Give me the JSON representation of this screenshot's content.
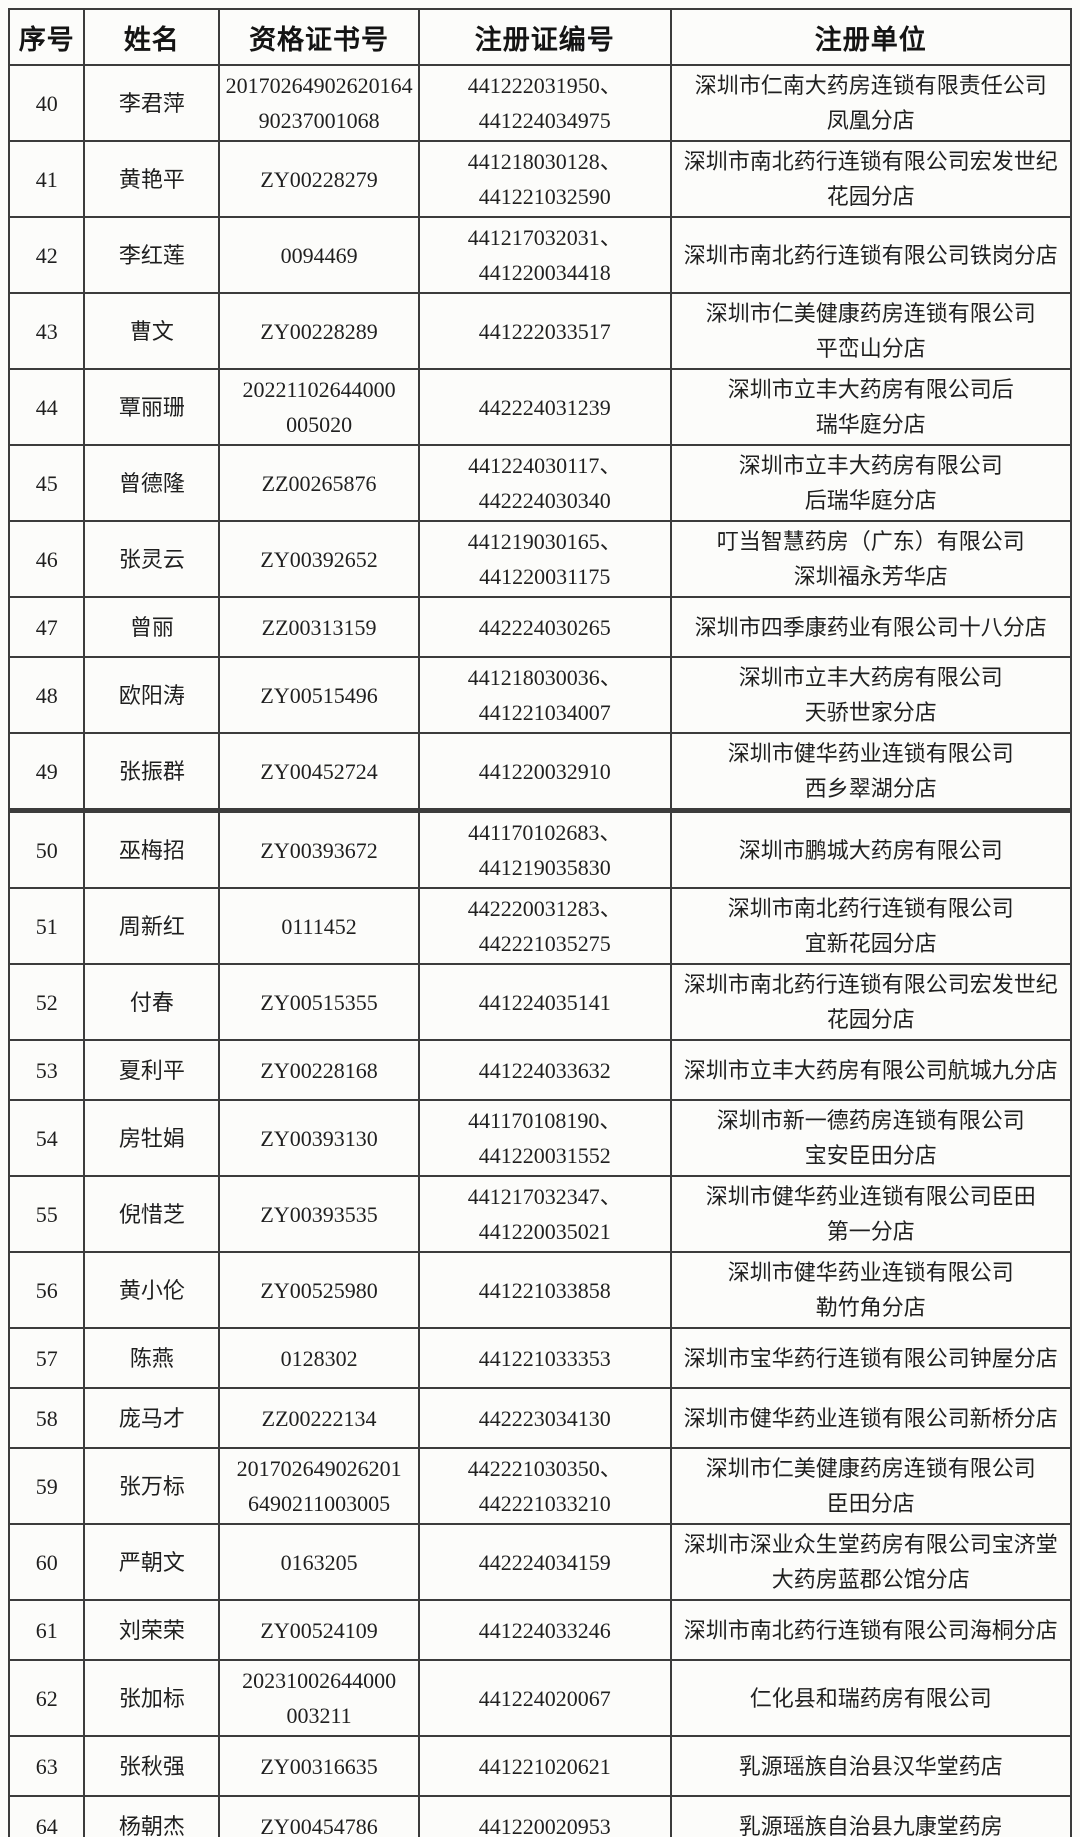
{
  "table": {
    "headers": [
      "序号",
      "姓名",
      "资格证书号",
      "注册证编号",
      "注册单位"
    ],
    "thick_divider_after_no": "49",
    "rows": [
      {
        "no": "40",
        "name": "李君萍",
        "cert": [
          "20170264902620164",
          "90237001068"
        ],
        "reg": [
          "441222031950、",
          "441224034975"
        ],
        "unit": [
          "深圳市仁南大药房连锁有限责任公司",
          "凤凰分店"
        ]
      },
      {
        "no": "41",
        "name": "黄艳平",
        "cert": [
          "ZY00228279"
        ],
        "reg": [
          "441218030128、",
          "441221032590"
        ],
        "unit": [
          "深圳市南北药行连锁有限公司宏发世纪",
          "花园分店"
        ]
      },
      {
        "no": "42",
        "name": "李红莲",
        "cert": [
          "0094469"
        ],
        "reg": [
          "441217032031、",
          "441220034418"
        ],
        "unit": [
          "深圳市南北药行连锁有限公司铁岗分店"
        ]
      },
      {
        "no": "43",
        "name": "曹文",
        "cert": [
          "ZY00228289"
        ],
        "reg": [
          "441222033517"
        ],
        "unit": [
          "深圳市仁美健康药房连锁有限公司",
          "平峦山分店"
        ]
      },
      {
        "no": "44",
        "name": "覃丽珊",
        "cert": [
          "20221102644000",
          "005020"
        ],
        "reg": [
          "442224031239"
        ],
        "unit": [
          "深圳市立丰大药房有限公司后",
          "瑞华庭分店"
        ]
      },
      {
        "no": "45",
        "name": "曾德隆",
        "cert": [
          "ZZ00265876"
        ],
        "reg": [
          "441224030117、",
          "442224030340"
        ],
        "unit": [
          "深圳市立丰大药房有限公司",
          "后瑞华庭分店"
        ]
      },
      {
        "no": "46",
        "name": "张灵云",
        "cert": [
          "ZY00392652"
        ],
        "reg": [
          "441219030165、",
          "441220031175"
        ],
        "unit": [
          "叮当智慧药房（广东）有限公司",
          "深圳福永芳华店"
        ]
      },
      {
        "no": "47",
        "name": "曾丽",
        "cert": [
          "ZZ00313159"
        ],
        "reg": [
          "442224030265"
        ],
        "unit": [
          "深圳市四季康药业有限公司十八分店"
        ]
      },
      {
        "no": "48",
        "name": "欧阳涛",
        "cert": [
          "ZY00515496"
        ],
        "reg": [
          "441218030036、",
          "441221034007"
        ],
        "unit": [
          "深圳市立丰大药房有限公司",
          "天骄世家分店"
        ]
      },
      {
        "no": "49",
        "name": "张振群",
        "cert": [
          "ZY00452724"
        ],
        "reg": [
          "441220032910"
        ],
        "unit": [
          "深圳市健华药业连锁有限公司",
          "西乡翠湖分店"
        ]
      },
      {
        "no": "50",
        "name": "巫梅招",
        "cert": [
          "ZY00393672"
        ],
        "reg": [
          "441170102683、",
          "441219035830"
        ],
        "unit": [
          "深圳市鹏城大药房有限公司"
        ]
      },
      {
        "no": "51",
        "name": "周新红",
        "cert": [
          "0111452"
        ],
        "reg": [
          "442220031283、",
          "442221035275"
        ],
        "unit": [
          "深圳市南北药行连锁有限公司",
          "宜新花园分店"
        ]
      },
      {
        "no": "52",
        "name": "付春",
        "cert": [
          "ZY00515355"
        ],
        "reg": [
          "441224035141"
        ],
        "unit": [
          "深圳市南北药行连锁有限公司宏发世纪",
          "花园分店"
        ]
      },
      {
        "no": "53",
        "name": "夏利平",
        "cert": [
          "ZY00228168"
        ],
        "reg": [
          "441224033632"
        ],
        "unit": [
          "深圳市立丰大药房有限公司航城九分店"
        ]
      },
      {
        "no": "54",
        "name": "房牡娟",
        "cert": [
          "ZY00393130"
        ],
        "reg": [
          "441170108190、",
          "441220031552"
        ],
        "unit": [
          "深圳市新一德药房连锁有限公司",
          "宝安臣田分店"
        ]
      },
      {
        "no": "55",
        "name": "倪惜芝",
        "cert": [
          "ZY00393535"
        ],
        "reg": [
          "441217032347、",
          "441220035021"
        ],
        "unit": [
          "深圳市健华药业连锁有限公司臣田",
          "第一分店"
        ]
      },
      {
        "no": "56",
        "name": "黄小伦",
        "cert": [
          "ZY00525980"
        ],
        "reg": [
          "441221033858"
        ],
        "unit": [
          "深圳市健华药业连锁有限公司",
          "勒竹角分店"
        ]
      },
      {
        "no": "57",
        "name": "陈燕",
        "cert": [
          "0128302"
        ],
        "reg": [
          "441221033353"
        ],
        "unit": [
          "深圳市宝华药行连锁有限公司钟屋分店"
        ]
      },
      {
        "no": "58",
        "name": "庞马才",
        "cert": [
          "ZZ00222134"
        ],
        "reg": [
          "442223034130"
        ],
        "unit": [
          "深圳市健华药业连锁有限公司新桥分店"
        ]
      },
      {
        "no": "59",
        "name": "张万标",
        "cert": [
          "201702649026201",
          "6490211003005"
        ],
        "reg": [
          "442221030350、",
          "442221033210"
        ],
        "unit": [
          "深圳市仁美健康药房连锁有限公司",
          "臣田分店"
        ]
      },
      {
        "no": "60",
        "name": "严朝文",
        "cert": [
          "0163205"
        ],
        "reg": [
          "442224034159"
        ],
        "unit": [
          "深圳市深业众生堂药房有限公司宝济堂",
          "大药房蓝郡公馆分店"
        ]
      },
      {
        "no": "61",
        "name": "刘荣荣",
        "cert": [
          "ZY00524109"
        ],
        "reg": [
          "441224033246"
        ],
        "unit": [
          "深圳市南北药行连锁有限公司海桐分店"
        ]
      },
      {
        "no": "62",
        "name": "张加标",
        "cert": [
          "20231002644000",
          "003211"
        ],
        "reg": [
          "441224020067"
        ],
        "unit": [
          "仁化县和瑞药房有限公司"
        ]
      },
      {
        "no": "63",
        "name": "张秋强",
        "cert": [
          "ZY00316635"
        ],
        "reg": [
          "441221020621"
        ],
        "unit": [
          "乳源瑶族自治县汉华堂药店"
        ]
      },
      {
        "no": "64",
        "name": "杨朝杰",
        "cert": [
          "ZY00454786"
        ],
        "reg": [
          "441220020953"
        ],
        "unit": [
          "乳源瑶族自治县九康堂药房"
        ]
      }
    ]
  }
}
